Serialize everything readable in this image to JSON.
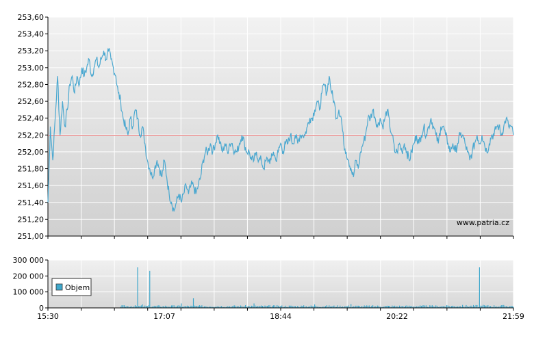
{
  "chart_data": [
    {
      "type": "line",
      "title": "",
      "xlabel": "",
      "ylabel": "",
      "ylim": [
        251.0,
        253.6
      ],
      "y_ticks": [
        "253,60",
        "253,40",
        "253,20",
        "253,00",
        "252,80",
        "252,60",
        "252,40",
        "252,20",
        "252,00",
        "251,80",
        "251,60",
        "251,40",
        "251,20",
        "251,00"
      ],
      "reference_line": 252.19,
      "reference_color": "#e06060",
      "line_color": "#4ba8d0",
      "watermark": "www.patria.cz",
      "grid": true,
      "series_keypoints": [
        [
          0,
          251.4
        ],
        [
          2,
          252.3
        ],
        [
          4,
          251.9
        ],
        [
          6,
          252.4
        ],
        [
          8,
          252.9
        ],
        [
          10,
          252.2
        ],
        [
          12,
          252.6
        ],
        [
          14,
          252.3
        ],
        [
          16,
          252.5
        ],
        [
          18,
          252.8
        ],
        [
          20,
          252.9
        ],
        [
          22,
          252.7
        ],
        [
          24,
          252.9
        ],
        [
          26,
          252.8
        ],
        [
          28,
          253.0
        ],
        [
          30,
          252.9
        ],
        [
          32,
          253.0
        ],
        [
          34,
          253.1
        ],
        [
          36,
          252.9
        ],
        [
          38,
          253.0
        ],
        [
          40,
          253.1
        ],
        [
          42,
          253.0
        ],
        [
          44,
          253.1
        ],
        [
          46,
          253.2
        ],
        [
          48,
          253.1
        ],
        [
          50,
          253.2
        ],
        [
          52,
          253.1
        ],
        [
          54,
          253.0
        ],
        [
          56,
          252.9
        ],
        [
          58,
          252.7
        ],
        [
          60,
          252.6
        ],
        [
          62,
          252.4
        ],
        [
          64,
          252.3
        ],
        [
          66,
          252.2
        ],
        [
          68,
          252.4
        ],
        [
          70,
          252.3
        ],
        [
          72,
          252.5
        ],
        [
          74,
          252.4
        ],
        [
          76,
          252.2
        ],
        [
          78,
          252.3
        ],
        [
          80,
          252.1
        ],
        [
          82,
          251.9
        ],
        [
          84,
          251.8
        ],
        [
          86,
          251.7
        ],
        [
          88,
          251.8
        ],
        [
          90,
          251.9
        ],
        [
          92,
          251.8
        ],
        [
          94,
          251.7
        ],
        [
          96,
          251.9
        ],
        [
          98,
          251.7
        ],
        [
          100,
          251.5
        ],
        [
          102,
          251.4
        ],
        [
          104,
          251.3
        ],
        [
          106,
          251.4
        ],
        [
          108,
          251.5
        ],
        [
          110,
          251.4
        ],
        [
          112,
          251.5
        ],
        [
          114,
          251.6
        ],
        [
          116,
          251.5
        ],
        [
          118,
          251.6
        ],
        [
          120,
          251.6
        ],
        [
          122,
          251.5
        ],
        [
          124,
          251.6
        ],
        [
          126,
          251.7
        ],
        [
          128,
          251.9
        ],
        [
          130,
          252.0
        ],
        [
          132,
          252.0
        ],
        [
          134,
          252.1
        ],
        [
          136,
          252.0
        ],
        [
          138,
          252.1
        ],
        [
          140,
          252.2
        ],
        [
          142,
          252.1
        ],
        [
          144,
          252.0
        ],
        [
          146,
          252.1
        ],
        [
          148,
          252.0
        ],
        [
          150,
          252.1
        ],
        [
          152,
          252.1
        ],
        [
          154,
          252.0
        ],
        [
          156,
          252.0
        ],
        [
          158,
          252.1
        ],
        [
          160,
          252.2
        ],
        [
          162,
          252.1
        ],
        [
          164,
          252.0
        ],
        [
          166,
          252.0
        ],
        [
          168,
          251.9
        ],
        [
          170,
          251.9
        ],
        [
          172,
          252.0
        ],
        [
          174,
          251.9
        ],
        [
          176,
          251.9
        ],
        [
          178,
          251.8
        ],
        [
          180,
          251.9
        ],
        [
          182,
          251.9
        ],
        [
          184,
          251.9
        ],
        [
          186,
          252.0
        ],
        [
          188,
          251.9
        ],
        [
          190,
          252.0
        ],
        [
          192,
          252.1
        ],
        [
          194,
          252.0
        ],
        [
          196,
          252.1
        ],
        [
          198,
          252.1
        ],
        [
          200,
          252.2
        ],
        [
          202,
          252.1
        ],
        [
          204,
          252.2
        ],
        [
          206,
          252.1
        ],
        [
          208,
          252.2
        ],
        [
          210,
          252.2
        ],
        [
          212,
          252.2
        ],
        [
          214,
          252.3
        ],
        [
          216,
          252.4
        ],
        [
          218,
          252.4
        ],
        [
          220,
          252.5
        ],
        [
          222,
          252.6
        ],
        [
          224,
          252.5
        ],
        [
          226,
          252.7
        ],
        [
          228,
          252.8
        ],
        [
          230,
          252.7
        ],
        [
          232,
          252.9
        ],
        [
          234,
          252.7
        ],
        [
          236,
          252.6
        ],
        [
          238,
          252.4
        ],
        [
          240,
          252.5
        ],
        [
          242,
          252.4
        ],
        [
          244,
          252.1
        ],
        [
          246,
          252.0
        ],
        [
          248,
          251.9
        ],
        [
          250,
          251.8
        ],
        [
          252,
          251.7
        ],
        [
          254,
          251.9
        ],
        [
          256,
          251.8
        ],
        [
          258,
          252.0
        ],
        [
          260,
          252.1
        ],
        [
          262,
          252.2
        ],
        [
          264,
          252.4
        ],
        [
          266,
          252.4
        ],
        [
          268,
          252.5
        ],
        [
          270,
          252.4
        ],
        [
          272,
          252.3
        ],
        [
          274,
          252.4
        ],
        [
          276,
          252.3
        ],
        [
          278,
          252.4
        ],
        [
          280,
          252.5
        ],
        [
          282,
          252.3
        ],
        [
          284,
          252.2
        ],
        [
          286,
          252.0
        ],
        [
          288,
          252.0
        ],
        [
          290,
          252.1
        ],
        [
          292,
          252.0
        ],
        [
          294,
          252.1
        ],
        [
          296,
          252.0
        ],
        [
          298,
          251.9
        ],
        [
          300,
          252.0
        ],
        [
          302,
          252.1
        ],
        [
          304,
          252.2
        ],
        [
          306,
          252.1
        ],
        [
          308,
          252.2
        ],
        [
          310,
          252.3
        ],
        [
          312,
          252.2
        ],
        [
          314,
          252.3
        ],
        [
          316,
          252.4
        ],
        [
          318,
          252.3
        ],
        [
          320,
          252.2
        ],
        [
          322,
          252.1
        ],
        [
          324,
          252.3
        ],
        [
          326,
          252.3
        ],
        [
          328,
          252.2
        ],
        [
          330,
          252.1
        ],
        [
          332,
          252.0
        ],
        [
          334,
          252.1
        ],
        [
          336,
          252.0
        ],
        [
          338,
          252.1
        ],
        [
          340,
          252.2
        ],
        [
          342,
          252.2
        ],
        [
          344,
          252.1
        ],
        [
          346,
          252.0
        ],
        [
          348,
          251.9
        ],
        [
          350,
          252.0
        ],
        [
          352,
          252.1
        ],
        [
          354,
          252.2
        ],
        [
          356,
          252.1
        ],
        [
          358,
          252.2
        ],
        [
          360,
          252.1
        ],
        [
          362,
          252.0
        ],
        [
          364,
          252.1
        ],
        [
          366,
          252.2
        ],
        [
          368,
          252.2
        ],
        [
          370,
          252.3
        ],
        [
          372,
          252.3
        ],
        [
          374,
          252.2
        ],
        [
          376,
          252.3
        ],
        [
          378,
          252.4
        ],
        [
          380,
          252.3
        ],
        [
          382,
          252.3
        ],
        [
          384,
          252.2
        ]
      ]
    },
    {
      "type": "bar",
      "series_name": "Objem",
      "ylim": [
        0,
        300000
      ],
      "y_ticks": [
        "300 000",
        "200 000",
        "100 000",
        "0"
      ],
      "x_ticks": [
        "15:30",
        "17:07",
        "18:44",
        "20:22",
        "21:59"
      ],
      "bar_color": "#3fa8cc",
      "volume_keypoints": [
        [
          0,
          300
        ],
        [
          5,
          1200
        ],
        [
          10,
          400
        ],
        [
          50,
          300
        ],
        [
          60,
          2000
        ],
        [
          70,
          18000
        ],
        [
          74,
          255000
        ],
        [
          78,
          22000
        ],
        [
          80,
          14000
        ],
        [
          84,
          232000
        ],
        [
          88,
          12000
        ],
        [
          90,
          16000
        ],
        [
          94,
          8000
        ],
        [
          100,
          14000
        ],
        [
          110,
          28000
        ],
        [
          120,
          60000
        ],
        [
          125,
          12000
        ],
        [
          130,
          18000
        ],
        [
          140,
          10000
        ],
        [
          150,
          14000
        ],
        [
          160,
          16000
        ],
        [
          170,
          28000
        ],
        [
          180,
          12000
        ],
        [
          190,
          14000
        ],
        [
          200,
          10000
        ],
        [
          210,
          16000
        ],
        [
          220,
          22000
        ],
        [
          225,
          14000
        ],
        [
          230,
          18000
        ],
        [
          240,
          12000
        ],
        [
          250,
          24000
        ],
        [
          260,
          14000
        ],
        [
          270,
          16000
        ],
        [
          280,
          18000
        ],
        [
          290,
          12000
        ],
        [
          300,
          14000
        ],
        [
          310,
          16000
        ],
        [
          320,
          12000
        ],
        [
          330,
          10000
        ],
        [
          340,
          14000
        ],
        [
          350,
          16000
        ],
        [
          356,
          255000
        ],
        [
          360,
          14000
        ],
        [
          370,
          18000
        ],
        [
          380,
          16000
        ],
        [
          384,
          12000
        ]
      ]
    }
  ]
}
